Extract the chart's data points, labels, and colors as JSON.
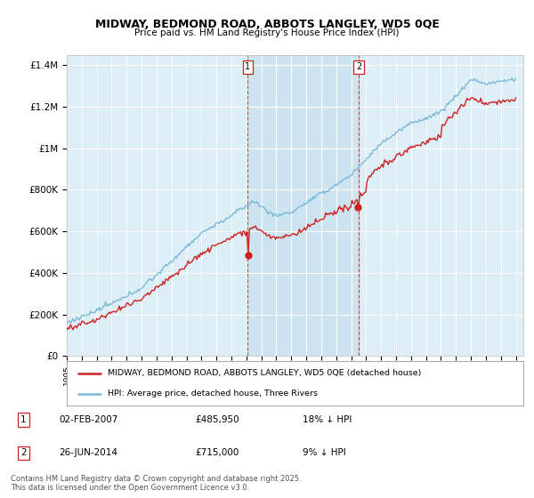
{
  "title": "MIDWAY, BEDMOND ROAD, ABBOTS LANGLEY, WD5 0QE",
  "subtitle": "Price paid vs. HM Land Registry's House Price Index (HPI)",
  "ylim": [
    0,
    1450000
  ],
  "yticks": [
    0,
    200000,
    400000,
    600000,
    800000,
    1000000,
    1200000,
    1400000
  ],
  "ytick_labels": [
    "£0",
    "£200K",
    "£400K",
    "£600K",
    "£800K",
    "£1M",
    "£1.2M",
    "£1.4M"
  ],
  "background_color": "#ffffff",
  "plot_bg_color": "#ddeef6",
  "grid_color": "#ffffff",
  "hpi_color": "#7ab8d8",
  "price_color": "#cc2222",
  "shade_color": "#cce4f0",
  "legend_line1": "MIDWAY, BEDMOND ROAD, ABBOTS LANGLEY, WD5 0QE (detached house)",
  "legend_line2": "HPI: Average price, detached house, Three Rivers",
  "footer": "Contains HM Land Registry data © Crown copyright and database right 2025.\nThis data is licensed under the Open Government Licence v3.0.",
  "marker_box_color": "#cc2222",
  "year1": 2007.08,
  "year2": 2014.5,
  "sale1_price": 485950,
  "sale2_price": 715000,
  "xlim_start": 1995,
  "xlim_end": 2025.5
}
